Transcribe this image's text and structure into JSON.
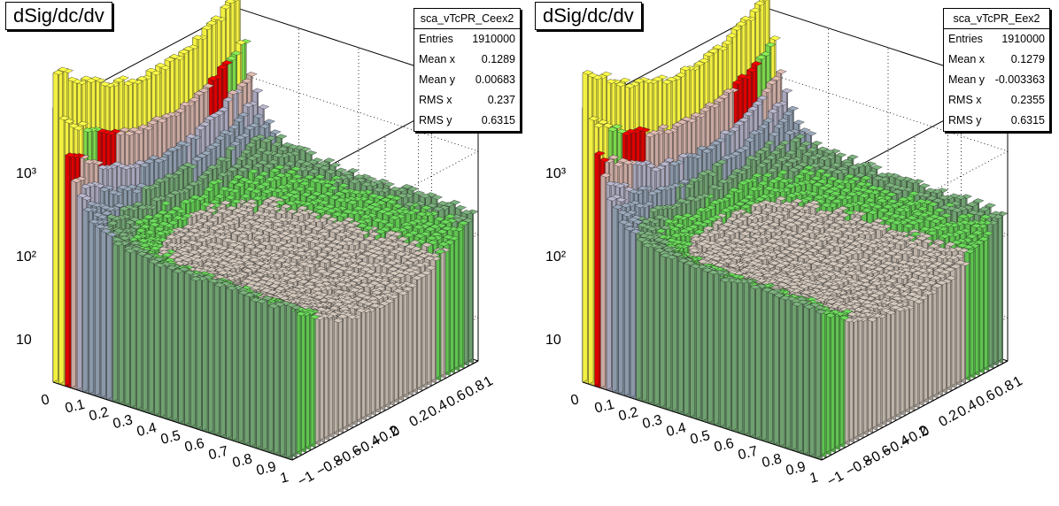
{
  "chart_data": [
    {
      "type": "surface3d",
      "title": "dSig/dc/dv",
      "stats": {
        "name": "sca_vTcPR_Ceex2",
        "rows": [
          {
            "label": "Entries",
            "value": "1910000"
          },
          {
            "label": "Mean x",
            "value": "0.1289"
          },
          {
            "label": "Mean y",
            "value": "0.00683"
          },
          {
            "label": "RMS x",
            "value": "0.237"
          },
          {
            "label": "RMS y",
            "value": "0.6315"
          }
        ]
      },
      "x_ticks": [
        "0",
        "0.1",
        "0.2",
        "0.3",
        "0.4",
        "0.5",
        "0.6",
        "0.7",
        "0.8",
        "0.9",
        "1"
      ],
      "y_ticks": [
        "−1",
        "−0.8",
        "−0.6",
        "−0.4",
        "−0.2",
        "0",
        "0.2",
        "0.4",
        "0.6",
        "0.8",
        "1"
      ],
      "z_ticks": [
        "10",
        "10²",
        "10³"
      ],
      "z_scale": "log",
      "xlim": [
        0,
        1
      ],
      "ylim": [
        -1,
        1
      ]
    },
    {
      "type": "surface3d",
      "title": "dSig/dc/dv",
      "stats": {
        "name": "sca_vTcPR_Eex2",
        "rows": [
          {
            "label": "Entries",
            "value": "1910000"
          },
          {
            "label": "Mean x",
            "value": "0.1279"
          },
          {
            "label": "Mean y",
            "value": "-0.003363"
          },
          {
            "label": "RMS x",
            "value": "0.2355"
          },
          {
            "label": "RMS y",
            "value": "0.6315"
          }
        ]
      },
      "x_ticks": [
        "0",
        "0.1",
        "0.2",
        "0.3",
        "0.4",
        "0.5",
        "0.6",
        "0.7",
        "0.8",
        "0.9",
        "1"
      ],
      "y_ticks": [
        "−1",
        "−0.8",
        "−0.6",
        "−0.4",
        "−0.2",
        "0",
        "0.2",
        "0.4",
        "0.6",
        "0.8",
        "1"
      ],
      "z_ticks": [
        "10",
        "10²",
        "10³"
      ],
      "z_scale": "log",
      "xlim": [
        0,
        1
      ],
      "ylim": [
        -1,
        1
      ]
    }
  ],
  "colors": {
    "surface_low": "#bdb3a8",
    "surface_mid": "#7e8c9a",
    "surface_green": "#66cc55",
    "surface_red": "#dd0000",
    "surface_yellow": "#f2f040",
    "bands_dark": "#555555"
  }
}
